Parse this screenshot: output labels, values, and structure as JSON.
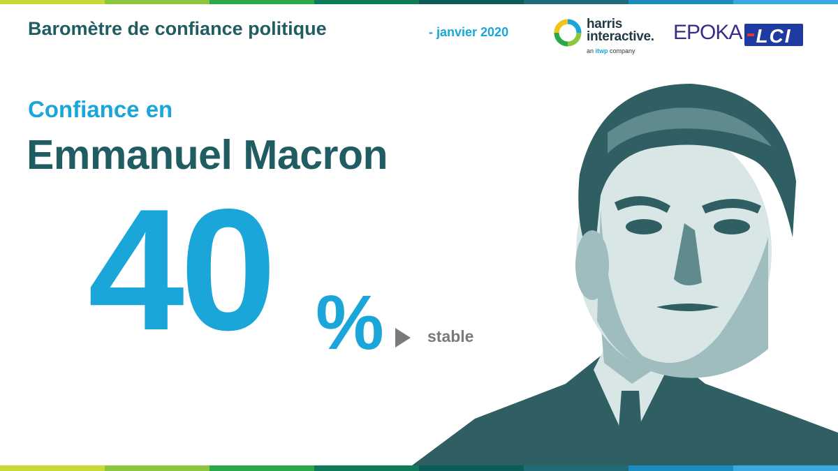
{
  "header": {
    "title": "Baromètre de confiance politique",
    "date": "- janvier 2020"
  },
  "logos": {
    "harris_line1": "harris",
    "harris_line2": "interactive.",
    "harris_sub_prefix": "an ",
    "harris_sub_brand": "itwp",
    "harris_sub_suffix": " company",
    "epoka": "EPOKA",
    "lci": "LCI"
  },
  "main": {
    "intro": "Confiance en",
    "person": "Emmanuel Macron",
    "value": "40",
    "unit": "%",
    "trend_label": "stable",
    "trend_icon": "play-right-icon"
  },
  "colors": {
    "teal_dark": "#1f5d63",
    "blue_accent": "#1aa6d8",
    "grey_trend": "#7a7a7a",
    "portrait_tones": [
      "#2f5f63",
      "#5f8a8e",
      "#9fbcbe",
      "#d9e6e6"
    ]
  },
  "stripes": [
    "#c8d935",
    "#8cc63f",
    "#2aa84a",
    "#0f7a5a",
    "#0c5d5a",
    "#1f6b78",
    "#1a8cc0",
    "#3aa9e0"
  ]
}
